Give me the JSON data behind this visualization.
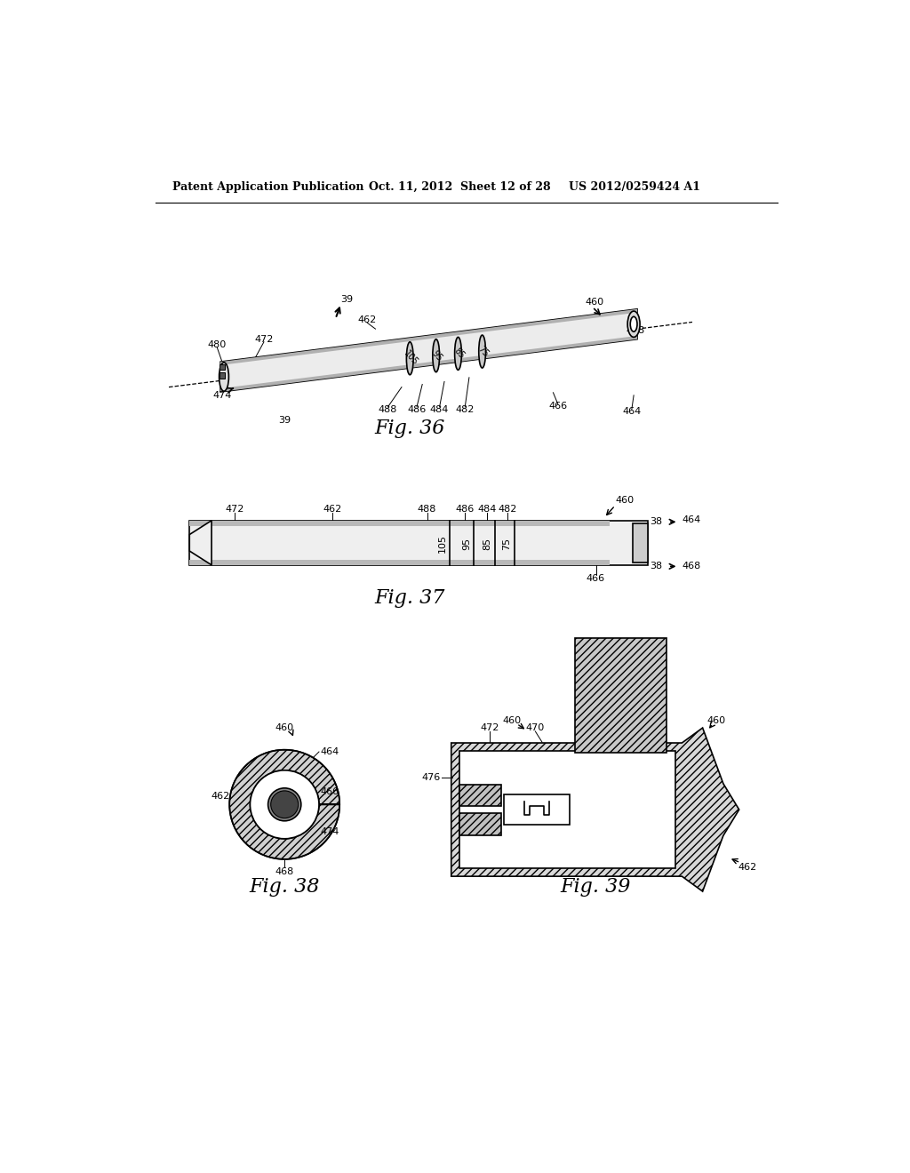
{
  "bg_color": "#ffffff",
  "header_left": "Patent Application Publication",
  "header_mid": "Oct. 11, 2012  Sheet 12 of 28",
  "header_right": "US 2012/0259424 A1",
  "fig36_caption": "Fig. 36",
  "fig37_caption": "Fig. 37",
  "fig38_caption": "Fig. 38",
  "fig39_caption": "Fig. 39"
}
